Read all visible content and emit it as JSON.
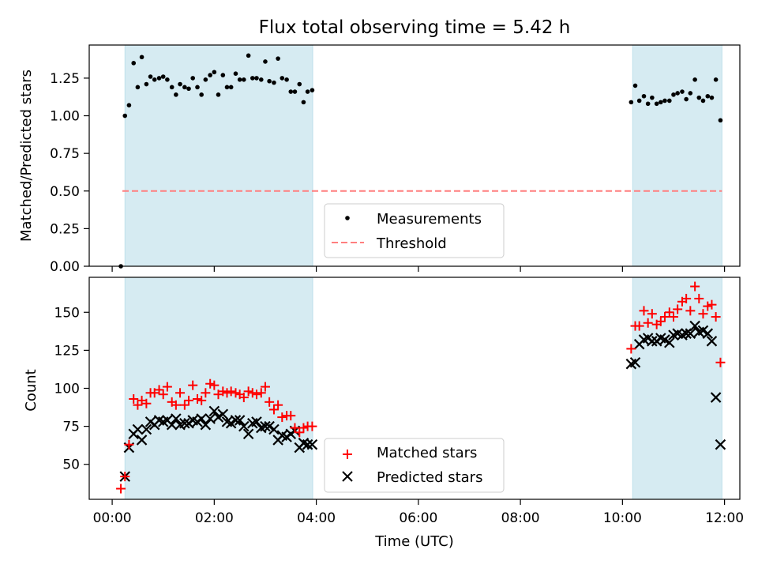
{
  "chart_data": [
    {
      "type": "scatter",
      "title": "Flux total observing time = 5.42 h",
      "xlabel": "",
      "ylabel": "Matched/Predicted stars",
      "xlim": [
        -0.45,
        12.3
      ],
      "ylim": [
        0,
        1.47
      ],
      "yticks": [
        0.0,
        0.25,
        0.5,
        0.75,
        1.0,
        1.25
      ],
      "ytick_labels": [
        "0.00",
        "0.25",
        "0.50",
        "0.75",
        "1.00",
        "1.25"
      ],
      "xticks": [
        0,
        2,
        4,
        6,
        8,
        10,
        12
      ],
      "shaded_intervals": [
        [
          0.25,
          3.93
        ],
        [
          10.2,
          11.95
        ]
      ],
      "threshold": {
        "name": "Threshold",
        "value": 0.5,
        "x_range": [
          0.2,
          11.95
        ],
        "color": "#ff7f7f"
      },
      "legend_position": "lower-center",
      "series": [
        {
          "name": "Measurements",
          "color": "#000000",
          "x": [
            0.17,
            0.25,
            0.33,
            0.42,
            0.5,
            0.58,
            0.67,
            0.75,
            0.83,
            0.92,
            1.0,
            1.08,
            1.17,
            1.25,
            1.33,
            1.42,
            1.5,
            1.58,
            1.67,
            1.75,
            1.83,
            1.92,
            2.0,
            2.08,
            2.17,
            2.25,
            2.33,
            2.42,
            2.5,
            2.58,
            2.67,
            2.75,
            2.83,
            2.92,
            3.0,
            3.08,
            3.17,
            3.25,
            3.33,
            3.42,
            3.5,
            3.58,
            3.67,
            3.75,
            3.83,
            3.92,
            10.17,
            10.25,
            10.33,
            10.42,
            10.5,
            10.58,
            10.67,
            10.75,
            10.83,
            10.92,
            11.0,
            11.08,
            11.17,
            11.25,
            11.33,
            11.42,
            11.5,
            11.58,
            11.67,
            11.75,
            11.83,
            11.92
          ],
          "values": [
            0.0,
            1.0,
            1.07,
            1.35,
            1.19,
            1.39,
            1.21,
            1.26,
            1.24,
            1.25,
            1.26,
            1.24,
            1.19,
            1.14,
            1.21,
            1.19,
            1.18,
            1.25,
            1.19,
            1.14,
            1.24,
            1.27,
            1.29,
            1.14,
            1.27,
            1.19,
            1.19,
            1.28,
            1.24,
            1.24,
            1.4,
            1.25,
            1.25,
            1.24,
            1.36,
            1.23,
            1.22,
            1.38,
            1.25,
            1.24,
            1.16,
            1.16,
            1.21,
            1.09,
            1.16,
            1.17,
            1.09,
            1.2,
            1.1,
            1.13,
            1.08,
            1.12,
            1.08,
            1.09,
            1.1,
            1.1,
            1.14,
            1.15,
            1.16,
            1.11,
            1.15,
            1.24,
            1.12,
            1.1,
            1.13,
            1.12,
            1.24,
            0.97
          ]
        }
      ]
    },
    {
      "type": "scatter",
      "title": "",
      "xlabel": "Time (UTC)",
      "ylabel": "Count",
      "xlim": [
        -0.45,
        12.3
      ],
      "ylim": [
        27,
        173
      ],
      "yticks": [
        50,
        75,
        100,
        125,
        150
      ],
      "ytick_labels": [
        "50",
        "75",
        "100",
        "125",
        "150"
      ],
      "xticks": [
        0,
        2,
        4,
        6,
        8,
        10,
        12
      ],
      "xtick_labels": [
        "00:00",
        "02:00",
        "04:00",
        "06:00",
        "08:00",
        "10:00",
        "12:00"
      ],
      "shaded_intervals": [
        [
          0.25,
          3.93
        ],
        [
          10.2,
          11.95
        ]
      ],
      "legend_position": "lower-center",
      "series": [
        {
          "name": "Matched stars",
          "color": "#ff0000",
          "marker": "plus",
          "x": [
            0.17,
            0.25,
            0.33,
            0.42,
            0.5,
            0.58,
            0.67,
            0.75,
            0.83,
            0.92,
            1.0,
            1.08,
            1.17,
            1.25,
            1.33,
            1.42,
            1.5,
            1.58,
            1.67,
            1.75,
            1.83,
            1.92,
            2.0,
            2.08,
            2.17,
            2.25,
            2.33,
            2.42,
            2.5,
            2.58,
            2.67,
            2.75,
            2.83,
            2.92,
            3.0,
            3.08,
            3.17,
            3.25,
            3.33,
            3.42,
            3.5,
            3.58,
            3.67,
            3.75,
            3.83,
            3.92,
            10.17,
            10.25,
            10.33,
            10.42,
            10.5,
            10.58,
            10.67,
            10.75,
            10.83,
            10.92,
            11.0,
            11.08,
            11.17,
            11.25,
            11.33,
            11.42,
            11.5,
            11.58,
            11.67,
            11.75,
            11.83,
            11.92
          ],
          "values": [
            34,
            42,
            63,
            93,
            89,
            92,
            90,
            97,
            97,
            99,
            96,
            101,
            91,
            89,
            97,
            89,
            92,
            102,
            93,
            92,
            97,
            103,
            102,
            96,
            98,
            97,
            98,
            97,
            96,
            94,
            98,
            97,
            96,
            97,
            101,
            91,
            86,
            89,
            81,
            82,
            82,
            74,
            71,
            74,
            75,
            75,
            126,
            141,
            141,
            151,
            143,
            149,
            142,
            144,
            147,
            150,
            147,
            152,
            157,
            159,
            151,
            167,
            159,
            149,
            154,
            155,
            147,
            117
          ]
        },
        {
          "name": "Predicted stars",
          "color": "#000000",
          "marker": "x",
          "x": [
            0.25,
            0.33,
            0.42,
            0.5,
            0.58,
            0.67,
            0.75,
            0.83,
            0.92,
            1.0,
            1.08,
            1.17,
            1.25,
            1.33,
            1.42,
            1.5,
            1.58,
            1.67,
            1.75,
            1.83,
            1.92,
            2.0,
            2.08,
            2.17,
            2.25,
            2.33,
            2.42,
            2.5,
            2.58,
            2.67,
            2.75,
            2.83,
            2.92,
            3.0,
            3.08,
            3.17,
            3.25,
            3.33,
            3.42,
            3.5,
            3.58,
            3.67,
            3.75,
            3.83,
            3.92,
            10.17,
            10.25,
            10.33,
            10.42,
            10.5,
            10.58,
            10.67,
            10.75,
            10.83,
            10.92,
            11.0,
            11.08,
            11.17,
            11.25,
            11.33,
            11.42,
            11.5,
            11.58,
            11.67,
            11.75,
            11.83,
            11.92
          ],
          "values": [
            42,
            61,
            70,
            73,
            66,
            73,
            78,
            76,
            79,
            78,
            79,
            76,
            80,
            76,
            77,
            77,
            79,
            78,
            80,
            76,
            80,
            85,
            81,
            83,
            78,
            77,
            79,
            79,
            75,
            70,
            77,
            78,
            74,
            75,
            75,
            73,
            66,
            69,
            68,
            70,
            72,
            61,
            64,
            63,
            63,
            116,
            117,
            129,
            132,
            133,
            131,
            131,
            133,
            132,
            130,
            135,
            136,
            135,
            136,
            136,
            141,
            137,
            138,
            136,
            131,
            94,
            63
          ]
        }
      ]
    }
  ]
}
